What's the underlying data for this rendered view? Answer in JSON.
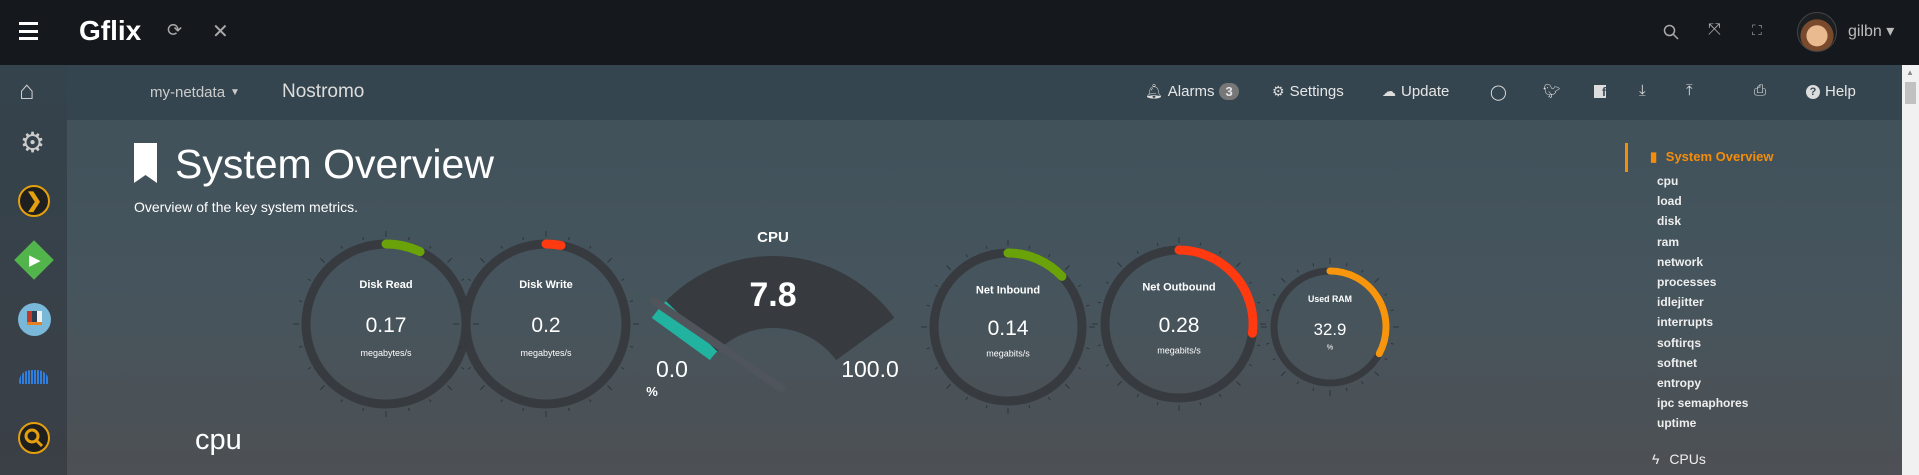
{
  "topbar": {
    "title": "Gflix",
    "user": "gilbn",
    "icons": [
      "menu-icon",
      "refresh-icon",
      "close-icon",
      "search-icon",
      "fullscreen-icon",
      "translate-icon",
      "avatar"
    ]
  },
  "sidebar": {
    "icons": [
      "home-icon",
      "gear-icon",
      "plex-icon",
      "emby-icon",
      "books-icon",
      "soundcloud-icon",
      "search-icon"
    ]
  },
  "subbar": {
    "server_menu": "my-netdata",
    "hostname": "Nostromo",
    "alarms": "Alarms",
    "alarms_count": "3",
    "settings": "Settings",
    "update": "Update",
    "help": "Help",
    "icons": [
      "github-icon",
      "twitter-icon",
      "facebook-icon",
      "download-icon",
      "upload-icon",
      "print-icon"
    ]
  },
  "main": {
    "title": "System Overview",
    "subtitle": "Overview of the key system metrics.",
    "section": "cpu"
  },
  "gauges": [
    {
      "title": "Disk Read",
      "value": "0.17",
      "units": "megabytes/s",
      "fraction": 0.07,
      "color": "#6aa309"
    },
    {
      "title": "Disk Write",
      "value": "0.2",
      "units": "megabytes/s",
      "fraction": 0.03,
      "color": "#ff3a11"
    },
    {
      "title": "Net Inbound",
      "value": "0.14",
      "units": "megabits/s",
      "fraction": 0.13,
      "color": "#6aa309"
    },
    {
      "title": "Net Outbound",
      "value": "0.28",
      "units": "megabits/s",
      "fraction": 0.27,
      "color": "#ff3a11"
    },
    {
      "title": "Used RAM",
      "value": "32.9",
      "units": "%",
      "fraction": 0.329,
      "color": "#f7960c"
    }
  ],
  "cpu_gauge": {
    "title": "CPU",
    "value": "7.8",
    "min": "0.0",
    "max": "100.0",
    "units": "%",
    "percent": 7.8,
    "color": "#22b2a0"
  },
  "rightnav": {
    "active": "System Overview",
    "items": [
      "cpu",
      "load",
      "disk",
      "ram",
      "network",
      "processes",
      "idlejitter",
      "interrupts",
      "softirqs",
      "softnet",
      "entropy",
      "ipc semaphores",
      "uptime"
    ],
    "next_section": "CPUs",
    "accent": "#f58d0b"
  }
}
